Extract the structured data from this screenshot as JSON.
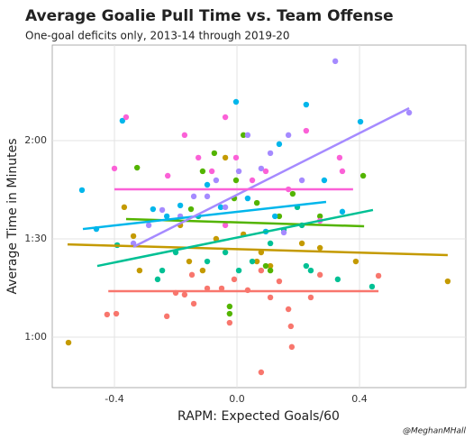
{
  "chart_data": {
    "type": "scatter",
    "title": "Average Goalie Pull Time vs. Team Offense",
    "subtitle": "One-goal deficits only, 2013-14 through 2019-20",
    "x_label": "RAPM: Expected Goals/60",
    "y_label": "Average Time in Minutes",
    "caption": "@MeghanMHall",
    "xlim": [
      -0.603,
      0.747
    ],
    "ylim": [
      0.743,
      2.486
    ],
    "xticks": [
      {
        "value": -0.4,
        "label": "-0.4"
      },
      {
        "value": 0,
        "label": "0.0"
      },
      0.4
    ],
    "yticks": [
      {
        "value": 1.0,
        "label": "1:00"
      },
      {
        "value": 1.5,
        "label": "1:30"
      },
      {
        "value": 2.0,
        "label": "2:00"
      }
    ],
    "grid": true,
    "series": [
      {
        "color": "#F8766D",
        "x": [
          -0.424,
          -0.394,
          -0.229,
          -0.2,
          -0.171,
          -0.147,
          -0.141,
          -0.097,
          -0.05,
          -0.024,
          -0.009,
          0.035,
          0.079,
          0.109,
          0.138,
          0.168,
          0.176,
          0.179,
          0.241,
          0.271,
          0.462,
          0.079
        ],
        "values": [
          1.115,
          1.119,
          1.106,
          1.225,
          1.216,
          1.317,
          1.17,
          1.248,
          1.248,
          1.073,
          1.294,
          1.239,
          1.339,
          1.202,
          1.284,
          1.142,
          1.055,
          0.95,
          1.202,
          1.317,
          1.312,
          0.821
        ],
        "fit": {
          "x": [
            -0.42,
            0.462
          ],
          "y": [
            1.234,
            1.234
          ]
        }
      },
      {
        "color": "#C49A00",
        "x": [
          -0.55,
          0.688,
          -0.338,
          -0.318,
          -0.185,
          -0.156,
          -0.112,
          -0.068,
          -0.038,
          0.021,
          0.065,
          0.079,
          0.109,
          0.212,
          0.271,
          0.388,
          -0.368
        ],
        "values": [
          0.972,
          1.284,
          1.514,
          1.339,
          1.569,
          1.385,
          1.339,
          1.5,
          1.913,
          1.523,
          1.385,
          1.431,
          1.362,
          1.477,
          1.454,
          1.385,
          1.661
        ],
        "fit": {
          "x": [
            -0.553,
            0.688
          ],
          "y": [
            1.472,
            1.417
          ]
        }
      },
      {
        "color": "#53B400",
        "x": [
          -0.326,
          -0.15,
          -0.112,
          -0.074,
          -0.024,
          -0.003,
          0.021,
          0.065,
          0.094,
          0.109,
          0.138,
          0.182,
          -0.009,
          0.412,
          0.271,
          -0.024
        ],
        "values": [
          1.862,
          1.651,
          1.844,
          1.936,
          1.156,
          1.798,
          2.028,
          1.683,
          1.362,
          1.339,
          1.615,
          1.729,
          1.706,
          1.821,
          1.615,
          1.119
        ],
        "fit": {
          "x": [
            -0.362,
            0.415
          ],
          "y": [
            1.601,
            1.564
          ]
        }
      },
      {
        "color": "#00C094",
        "x": [
          -0.391,
          -0.259,
          -0.244,
          -0.2,
          -0.126,
          -0.097,
          -0.038,
          0.006,
          0.05,
          0.109,
          0.153,
          0.197,
          0.212,
          0.226,
          0.241,
          0.441,
          0.329
        ],
        "values": [
          1.468,
          1.294,
          1.339,
          1.431,
          1.615,
          1.385,
          1.431,
          1.339,
          1.385,
          1.477,
          1.546,
          1.661,
          1.569,
          1.362,
          1.339,
          1.257,
          1.294
        ],
        "fit": {
          "x": [
            -0.456,
            0.444
          ],
          "y": [
            1.362,
            1.647
          ]
        }
      },
      {
        "color": "#00B6EB",
        "x": [
          -0.506,
          -0.459,
          -0.374,
          -0.274,
          -0.229,
          -0.185,
          -0.097,
          -0.053,
          -0.003,
          0.035,
          0.094,
          0.124,
          0.138,
          0.226,
          0.285,
          0.403,
          0.344
        ],
        "values": [
          1.748,
          1.55,
          2.101,
          1.651,
          1.615,
          1.67,
          1.775,
          1.661,
          2.197,
          1.706,
          1.537,
          1.615,
          1.982,
          2.183,
          1.798,
          2.096,
          1.638
        ],
        "fit": {
          "x": [
            -0.503,
            0.291
          ],
          "y": [
            1.55,
            1.688
          ]
        }
      },
      {
        "color": "#A58AFF",
        "x": [
          -0.338,
          -0.288,
          -0.244,
          -0.185,
          -0.141,
          -0.097,
          -0.068,
          -0.038,
          0.006,
          0.035,
          0.079,
          0.109,
          0.168,
          0.212,
          0.321,
          0.562,
          0.153
        ],
        "values": [
          1.477,
          1.569,
          1.647,
          1.615,
          1.716,
          1.716,
          1.798,
          1.661,
          1.844,
          2.028,
          1.858,
          1.936,
          2.028,
          1.798,
          2.404,
          2.142,
          1.532
        ],
        "fit": {
          "x": [
            -0.338,
            0.562
          ],
          "y": [
            1.459,
            2.165
          ]
        }
      },
      {
        "color": "#FB61D7",
        "x": [
          -0.4,
          -0.362,
          -0.226,
          -0.171,
          -0.126,
          -0.082,
          -0.038,
          -0.003,
          0.05,
          0.094,
          0.168,
          0.226,
          0.335,
          0.344,
          0.271,
          -0.038
        ],
        "values": [
          1.858,
          2.119,
          1.821,
          2.028,
          1.913,
          1.844,
          2.119,
          1.913,
          1.798,
          1.844,
          1.752,
          2.05,
          1.913,
          1.844,
          1.592,
          1.569
        ],
        "fit": {
          "x": [
            -0.4,
            0.379
          ],
          "y": [
            1.752,
            1.752
          ]
        }
      }
    ]
  }
}
